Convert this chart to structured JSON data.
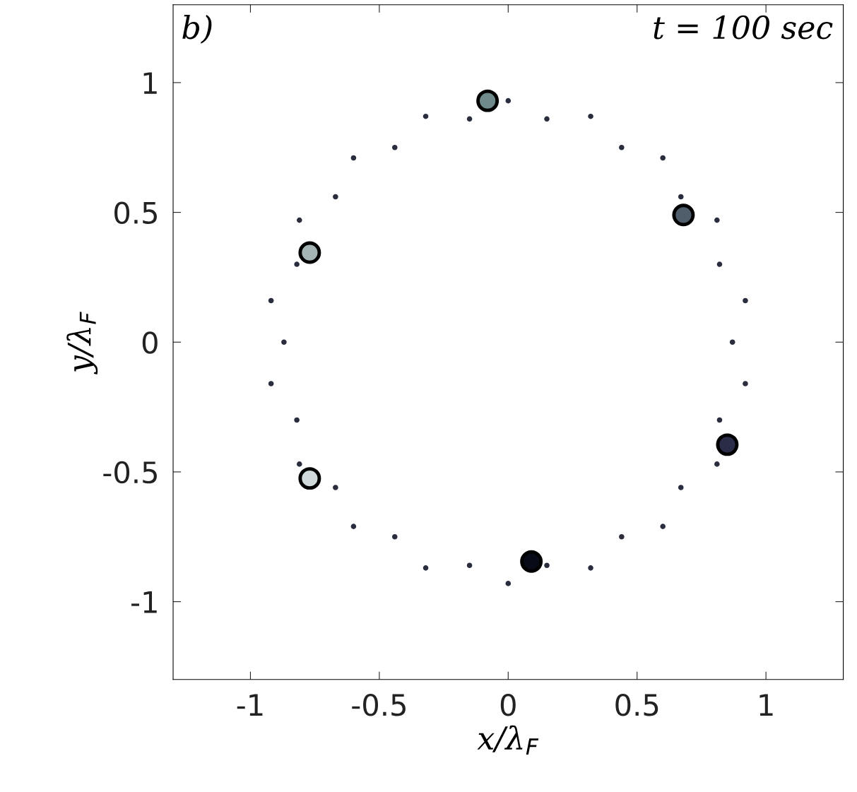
{
  "chart_data": {
    "type": "scatter",
    "xlabel": "x/λ$_{F}$",
    "ylabel": "y/λ$_{F}$",
    "annotations": [
      "b)",
      "t = 100 sec"
    ],
    "xlim": [
      -1.3,
      1.3
    ],
    "ylim": [
      -1.3,
      1.3
    ],
    "xticks": [
      -1,
      -0.5,
      0,
      0.5,
      1
    ],
    "yticks": [
      -1,
      -0.5,
      0,
      0.5,
      1
    ],
    "grid": false,
    "legend": false,
    "marker": "circle",
    "series": [
      {
        "color": "#2a2d3e",
        "x": [
          0.87,
          0.92,
          0.82,
          0.81,
          0.67,
          0.6,
          0.44,
          0.32,
          0.15,
          0,
          -0.15,
          -0.32,
          -0.44,
          -0.6,
          -0.67,
          -0.81,
          -0.82,
          -0.92,
          -0.87,
          -0.92,
          -0.82,
          -0.81,
          -0.67,
          -0.6,
          -0.44,
          -0.32,
          -0.15,
          0,
          0.15,
          0.32,
          0.44,
          0.6,
          0.67,
          0.81,
          0.82,
          0.92
        ],
        "values": [
          0,
          0.16,
          0.3,
          0.47,
          0.56,
          0.71,
          0.75,
          0.87,
          0.86,
          0.93,
          0.86,
          0.87,
          0.75,
          0.71,
          0.56,
          0.47,
          0.3,
          0.16,
          0,
          -0.16,
          -0.3,
          -0.47,
          -0.56,
          -0.71,
          -0.75,
          -0.87,
          -0.86,
          -0.93,
          -0.86,
          -0.87,
          -0.75,
          -0.71,
          -0.56,
          -0.47,
          -0.3,
          -0.16
        ]
      },
      {
        "x": [
          -0.08,
          0.68,
          -0.77,
          0.85,
          -0.77,
          0.09
        ],
        "values": [
          0.93,
          0.49,
          0.345,
          -0.395,
          -0.525,
          -0.845
        ],
        "colors": [
          "#6f8a8a",
          "#4f5e6a",
          "#a5b5b5",
          "#2b2d48",
          "#d0dada",
          "#080a18"
        ]
      }
    ]
  }
}
